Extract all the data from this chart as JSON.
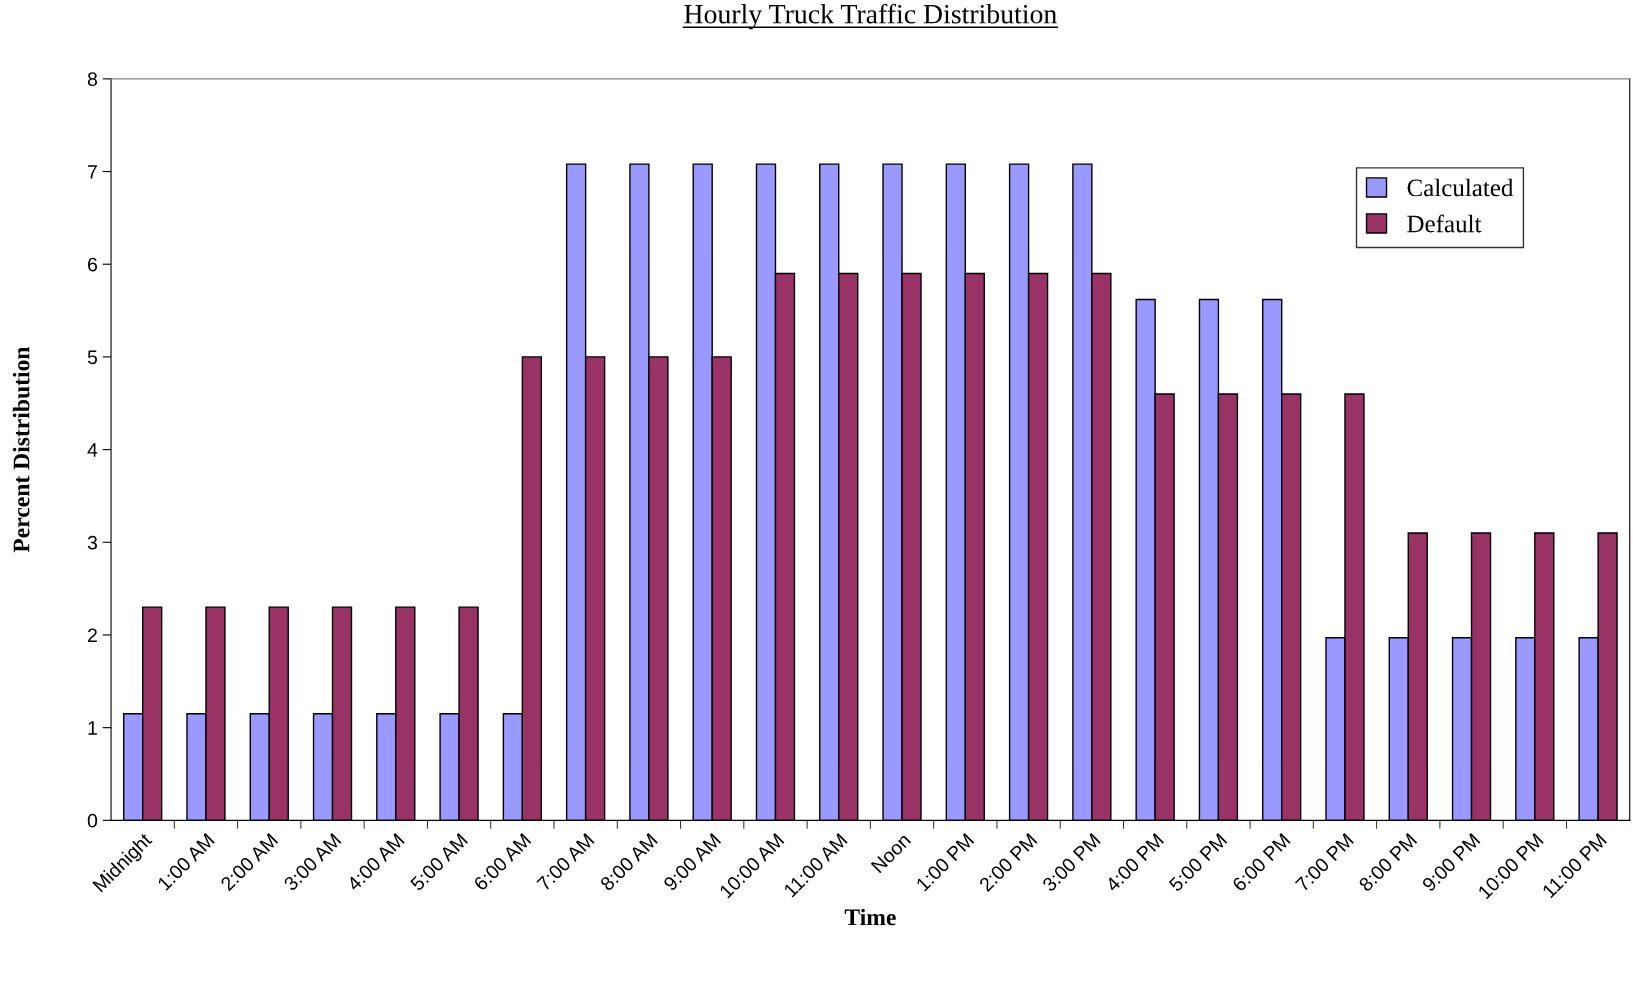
{
  "chart_data": {
    "type": "bar",
    "title": "Hourly Truck Traffic Distribution",
    "xlabel": "Time",
    "ylabel": "Percent Distribution",
    "categories": [
      "Midnight",
      "1:00 AM",
      "2:00 AM",
      "3:00 AM",
      "4:00 AM",
      "5:00 AM",
      "6:00 AM",
      "7:00 AM",
      "8:00 AM",
      "9:00 AM",
      "10:00 AM",
      "11:00 AM",
      "Noon",
      "1:00 PM",
      "2:00 PM",
      "3:00 PM",
      "4:00 PM",
      "5:00 PM",
      "6:00 PM",
      "7:00 PM",
      "8:00 PM",
      "9:00 PM",
      "10:00 PM",
      "11:00 PM"
    ],
    "series": [
      {
        "name": "Calculated",
        "color": "#9999ff",
        "values": [
          1.15,
          1.15,
          1.15,
          1.15,
          1.15,
          1.15,
          1.15,
          7.08,
          7.08,
          7.08,
          7.08,
          7.08,
          7.08,
          7.08,
          7.08,
          7.08,
          5.62,
          5.62,
          5.62,
          1.97,
          1.97,
          1.97,
          1.97,
          1.97
        ]
      },
      {
        "name": "Default",
        "color": "#993366",
        "values": [
          2.3,
          2.3,
          2.3,
          2.3,
          2.3,
          2.3,
          5.0,
          5.0,
          5.0,
          5.0,
          5.9,
          5.9,
          5.9,
          5.9,
          5.9,
          5.9,
          4.6,
          4.6,
          4.6,
          4.6,
          3.1,
          3.1,
          3.1,
          3.1
        ]
      }
    ],
    "ylim": [
      0,
      8
    ],
    "yticks": [
      0,
      1,
      2,
      3,
      4,
      5,
      6,
      7,
      8
    ],
    "grid": false,
    "legend": "top right"
  }
}
